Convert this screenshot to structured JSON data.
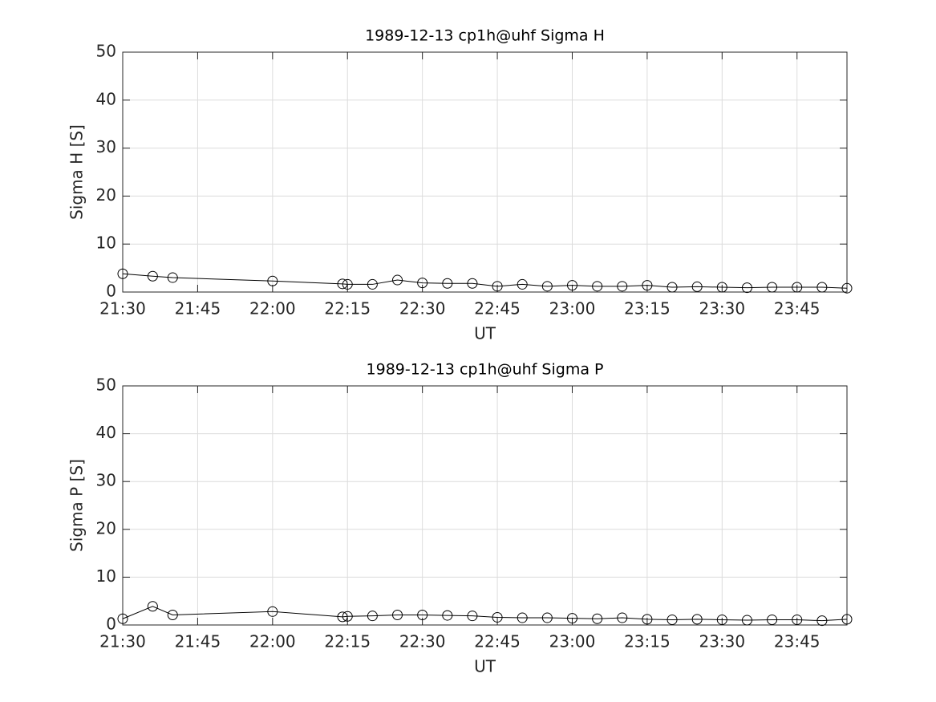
{
  "chart_data": [
    {
      "type": "line",
      "title": "1989-12-13  cp1h@uhf Sigma H",
      "x_label": "UT",
      "y_label": "Sigma H [S]",
      "x": [
        "21:30",
        "21:36",
        "21:40",
        "22:00",
        "22:14",
        "22:15",
        "22:20",
        "22:25",
        "22:30",
        "22:35",
        "22:40",
        "22:45",
        "22:50",
        "22:55",
        "23:00",
        "23:05",
        "23:10",
        "23:15",
        "23:20",
        "23:25",
        "23:30",
        "23:35",
        "23:40",
        "23:45",
        "23:50",
        "23:55"
      ],
      "series": [
        {
          "name": "Sigma H",
          "color": "#000000",
          "values": [
            3.8,
            3.3,
            3.0,
            2.3,
            1.7,
            1.6,
            1.6,
            2.5,
            1.9,
            1.8,
            1.8,
            1.2,
            1.6,
            1.2,
            1.4,
            1.2,
            1.2,
            1.4,
            1.0,
            1.1,
            1.0,
            0.9,
            1.0,
            1.0,
            1.0,
            0.8
          ]
        }
      ],
      "xlim": [
        "21:30",
        "23:55"
      ],
      "xticks": [
        "21:30",
        "21:45",
        "22:00",
        "22:15",
        "22:30",
        "22:45",
        "23:00",
        "23:15",
        "23:30",
        "23:45"
      ],
      "ylim": [
        0,
        50
      ],
      "yticks": [
        0,
        10,
        20,
        30,
        40,
        50
      ],
      "grid": true
    },
    {
      "type": "line",
      "title": "1989-12-13  cp1h@uhf Sigma P",
      "x_label": "UT",
      "y_label": "Sigma P [S]",
      "x": [
        "21:30",
        "21:36",
        "21:40",
        "22:00",
        "22:14",
        "22:15",
        "22:20",
        "22:25",
        "22:30",
        "22:35",
        "22:40",
        "22:45",
        "22:50",
        "22:55",
        "23:00",
        "23:05",
        "23:10",
        "23:15",
        "23:20",
        "23:25",
        "23:30",
        "23:35",
        "23:40",
        "23:45",
        "23:50",
        "23:55"
      ],
      "series": [
        {
          "name": "Sigma P",
          "color": "#000000",
          "values": [
            1.3,
            3.9,
            2.1,
            2.8,
            1.7,
            1.8,
            1.9,
            2.1,
            2.1,
            2.0,
            1.9,
            1.6,
            1.5,
            1.5,
            1.4,
            1.3,
            1.5,
            1.2,
            1.1,
            1.2,
            1.1,
            1.0,
            1.1,
            1.1,
            0.9,
            1.2
          ]
        }
      ],
      "xlim": [
        "21:30",
        "23:55"
      ],
      "xticks": [
        "21:30",
        "21:45",
        "22:00",
        "22:15",
        "22:30",
        "22:45",
        "23:00",
        "23:15",
        "23:30",
        "23:45"
      ],
      "ylim": [
        0,
        50
      ],
      "yticks": [
        0,
        10,
        20,
        30,
        40,
        50
      ],
      "grid": true
    }
  ]
}
